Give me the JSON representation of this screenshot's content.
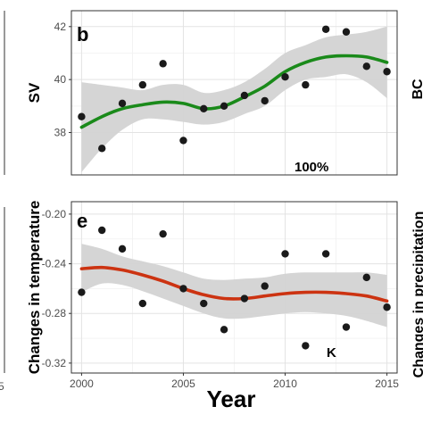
{
  "figure": {
    "x_title": "Year",
    "edge_fragments": {
      "right_top": "BC",
      "right_bottom": "Changes in precipitation",
      "left_bottom_tick": "5"
    }
  },
  "chart_data": [
    {
      "panel": "b",
      "type": "scatter",
      "trend": "loess",
      "ylabel": "SV",
      "annotation": "100%",
      "xlim": [
        1999.5,
        2015.5
      ],
      "ylim": [
        36.4,
        42.6
      ],
      "xticks": [
        "2000",
        "2005",
        "2010",
        "2015"
      ],
      "yticks": [
        38,
        40,
        42
      ],
      "ytick_labels": [
        "38",
        "40",
        "42"
      ],
      "x": [
        2000,
        2001,
        2002,
        2003,
        2004,
        2005,
        2006,
        2007,
        2008,
        2009,
        2010,
        2011,
        2012,
        2013,
        2014,
        2015
      ],
      "y": [
        38.6,
        37.4,
        39.1,
        39.8,
        40.6,
        37.7,
        38.9,
        39.0,
        39.4,
        39.2,
        40.1,
        39.8,
        41.9,
        41.8,
        40.5,
        40.3
      ],
      "smooth": [
        38.2,
        38.6,
        38.9,
        39.05,
        39.15,
        39.1,
        38.9,
        39.0,
        39.35,
        39.75,
        40.3,
        40.65,
        40.85,
        40.9,
        40.85,
        40.65
      ],
      "band_lower": [
        36.5,
        37.4,
        38.1,
        38.5,
        38.5,
        38.4,
        38.3,
        38.4,
        38.7,
        39.0,
        39.6,
        40.0,
        40.1,
        40.2,
        39.9,
        39.3
      ],
      "band_upper": [
        39.9,
        39.8,
        39.7,
        39.6,
        39.8,
        39.8,
        39.5,
        39.6,
        39.9,
        40.4,
        41.0,
        41.3,
        41.6,
        41.7,
        41.8,
        42.0
      ],
      "line_color": "#1a8a1a",
      "band_color": "#d3d3d3",
      "point_color": "#1a1a1a",
      "grid": true
    },
    {
      "panel": "e",
      "type": "scatter",
      "trend": "loess",
      "ylabel": "Changes in temperature",
      "annotation": "K",
      "xlim": [
        1999.5,
        2015.5
      ],
      "ylim": [
        -0.328,
        -0.19
      ],
      "xticks": [
        "2000",
        "2005",
        "2010",
        "2015"
      ],
      "yticks": [
        -0.32,
        -0.28,
        -0.24,
        -0.2
      ],
      "ytick_labels": [
        "-0.32",
        "-0.28",
        "-0.24",
        "-0.20"
      ],
      "x": [
        2000,
        2001,
        2002,
        2003,
        2004,
        2005,
        2006,
        2007,
        2008,
        2009,
        2010,
        2011,
        2012,
        2013,
        2014,
        2015
      ],
      "y": [
        -0.263,
        -0.213,
        -0.228,
        -0.272,
        -0.216,
        -0.26,
        -0.272,
        -0.293,
        -0.268,
        -0.258,
        -0.232,
        -0.306,
        -0.232,
        -0.291,
        -0.251,
        -0.275
      ],
      "smooth": [
        -0.244,
        -0.243,
        -0.245,
        -0.249,
        -0.254,
        -0.26,
        -0.265,
        -0.268,
        -0.268,
        -0.266,
        -0.264,
        -0.263,
        -0.263,
        -0.264,
        -0.266,
        -0.27
      ],
      "band_lower": [
        -0.263,
        -0.256,
        -0.257,
        -0.262,
        -0.268,
        -0.274,
        -0.28,
        -0.284,
        -0.284,
        -0.282,
        -0.28,
        -0.279,
        -0.28,
        -0.282,
        -0.286,
        -0.291
      ],
      "band_upper": [
        -0.224,
        -0.228,
        -0.234,
        -0.238,
        -0.242,
        -0.247,
        -0.252,
        -0.253,
        -0.252,
        -0.251,
        -0.248,
        -0.247,
        -0.247,
        -0.247,
        -0.247,
        -0.249
      ],
      "line_color": "#cc3311",
      "band_color": "#d3d3d3",
      "point_color": "#1a1a1a",
      "grid": true
    }
  ]
}
